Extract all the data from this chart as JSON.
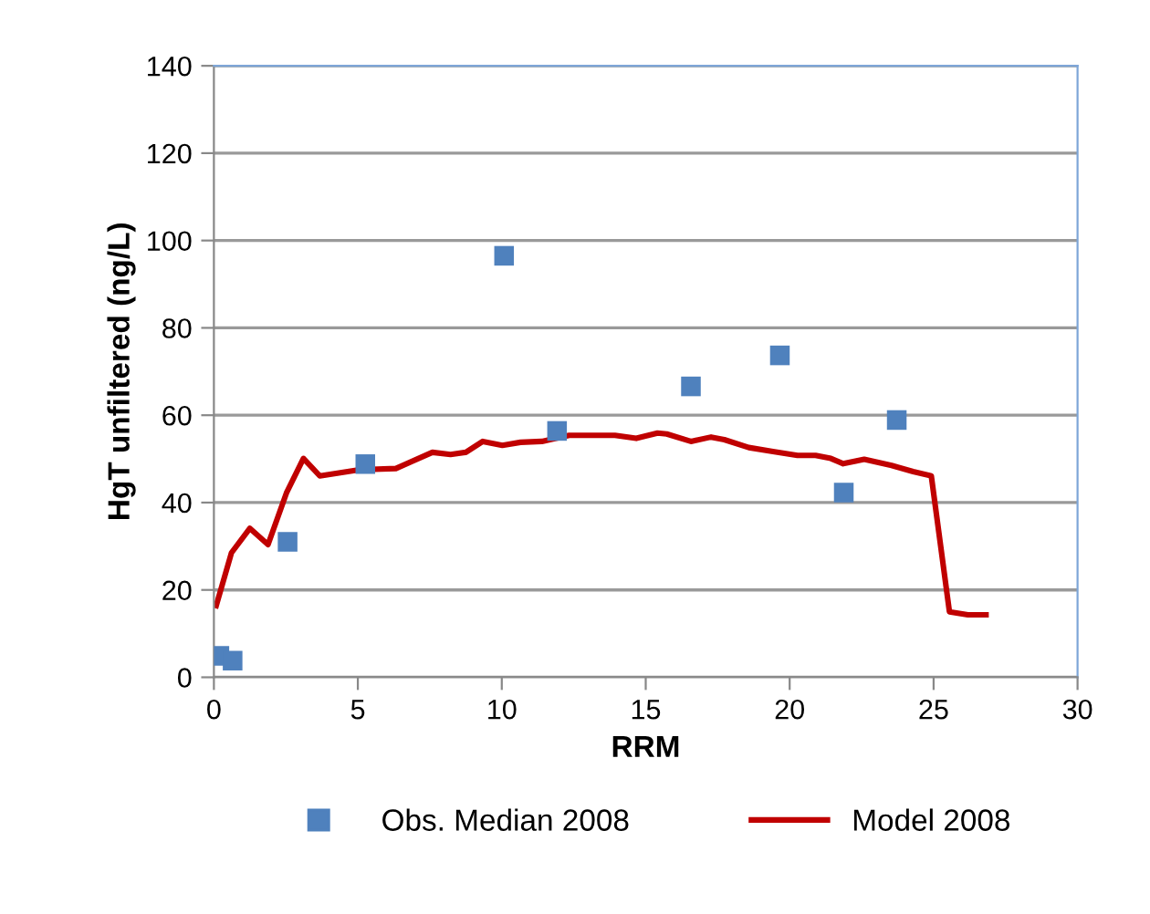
{
  "chart_data": {
    "type": "scatter",
    "xlabel": "RRM",
    "ylabel": "HgT unfiltered (ng/L)",
    "xlim": [
      0,
      30
    ],
    "xticks": [
      0,
      5,
      10,
      15,
      20,
      25,
      30
    ],
    "ylim": [
      0,
      140
    ],
    "yticks": [
      0,
      20,
      40,
      60,
      80,
      100,
      120,
      140
    ],
    "grid": "y",
    "legend": "bottom",
    "series": [
      {
        "name": "Obs. Median 2008",
        "marker": "square",
        "color": "#4f81bd",
        "x": [
          0.19,
          0.65,
          2.56,
          5.26,
          10.08,
          11.92,
          16.57,
          19.66,
          21.88,
          23.72
        ],
        "values": [
          4.9,
          3.8,
          31.0,
          48.8,
          96.5,
          56.4,
          66.6,
          73.7,
          42.3,
          58.9
        ]
      },
      {
        "name": "Model 2008",
        "type": "line",
        "marker": "none",
        "line_style": "solid",
        "color": "#c00000",
        "x": [
          0.08,
          0.61,
          1.25,
          1.88,
          2.52,
          3.11,
          3.68,
          5.05,
          6.32,
          7.59,
          8.22,
          8.75,
          9.34,
          10.02,
          10.65,
          11.39,
          12.34,
          13.93,
          14.67,
          15.41,
          15.73,
          16.57,
          17.27,
          17.73,
          18.58,
          19.42,
          20.27,
          20.9,
          21.43,
          21.86,
          22.59,
          23.54,
          24.29,
          24.92,
          25.55,
          26.19,
          26.82
        ],
        "values": [
          16.4,
          28.5,
          34.1,
          30.4,
          42.2,
          50.1,
          46.1,
          47.5,
          47.8,
          51.5,
          51.0,
          51.5,
          54.0,
          53.1,
          53.8,
          54.0,
          55.4,
          55.4,
          54.7,
          55.9,
          55.7,
          54.0,
          55.0,
          54.4,
          52.6,
          51.7,
          50.8,
          50.8,
          50.1,
          48.9,
          49.9,
          48.5,
          47.1,
          46.1,
          15.0,
          14.3,
          14.3
        ]
      }
    ]
  }
}
